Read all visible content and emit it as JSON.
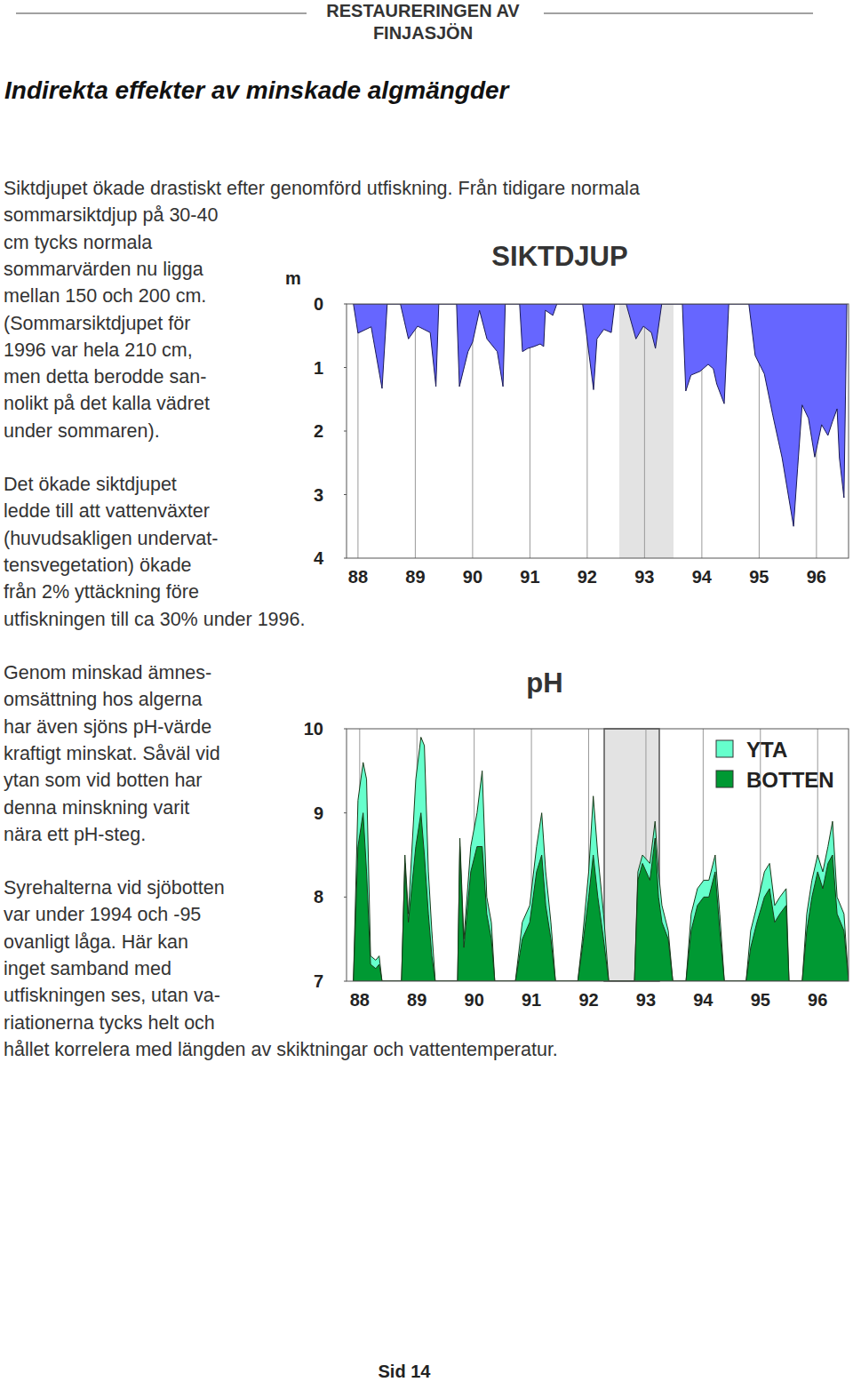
{
  "header": {
    "lines": [
      "RESTAURERINGEN AV",
      "FINJASJÖN"
    ]
  },
  "title": "Indirekta effekter av minskade algmängder",
  "paragraphs": [
    [
      "Siktdjupet ökade drastiskt efter genomförd utfiskning. Från tidigare normala",
      "sommarsiktdjup på 30-40",
      "cm tycks normala",
      "sommarvärden nu ligga",
      "mellan 150 och 200 cm.",
      "(Sommarsiktdjupet för",
      "1996 var hela 210 cm,",
      "men detta berodde san-",
      "nolikt på det kalla vädret",
      "under sommaren)."
    ],
    [
      "Det ökade siktdjupet",
      "ledde till att vattenväxter",
      "(huvudsakligen undervat-",
      "tensvegetation) ökade",
      "från 2% yttäckning före",
      "utfiskningen till ca 30% under 1996."
    ],
    [
      "Genom minskad ämnes-",
      "omsättning hos algerna",
      "har även sjöns pH-värde",
      "kraftigt minskat. Såväl vid",
      "ytan som vid botten har",
      "denna minskning varit",
      "nära ett pH-steg."
    ],
    [
      "Syrehalterna vid sjöbotten",
      "var under 1994 och -95",
      "ovanligt låga. Här kan",
      "inget samband med",
      "utfiskningen ses, utan va-",
      "riationerna tycks helt och",
      "hållet korrelera med längden av skiktningar och vattentemperatur."
    ]
  ],
  "chart_data": [
    {
      "type": "area",
      "title": "SIKTDJUP",
      "y_label": "m",
      "x": [
        87.92,
        88.0,
        88.23,
        88.42,
        88.51,
        88.74,
        88.88,
        89.04,
        89.15,
        89.26,
        89.36,
        89.41,
        89.72,
        89.77,
        89.92,
        90.0,
        90.12,
        90.25,
        90.43,
        90.53,
        90.57,
        90.82,
        90.87,
        90.96,
        91.07,
        91.18,
        91.24,
        91.27,
        91.4,
        91.47,
        91.92,
        92.11,
        92.17,
        92.29,
        92.42,
        92.48,
        92.68,
        92.85,
        92.98,
        93.12,
        93.19,
        93.3,
        93.66,
        93.72,
        93.81,
        93.97,
        94.11,
        94.2,
        94.26,
        94.39,
        94.47,
        94.82,
        94.93,
        95.09,
        95.24,
        95.4,
        95.6,
        95.67,
        95.75,
        95.86,
        95.97,
        96.09,
        96.2,
        96.28,
        96.36,
        96.4,
        96.48,
        96.53
      ],
      "values": [
        0,
        0.46,
        0.36,
        1.33,
        0,
        0,
        0.55,
        0.35,
        0.4,
        0.45,
        1.3,
        0,
        0,
        1.3,
        0.75,
        0.6,
        0.1,
        0.55,
        0.75,
        1.3,
        0,
        0,
        0.75,
        0.7,
        0.67,
        0.63,
        0.67,
        0.1,
        0.18,
        0,
        0,
        1.35,
        0.55,
        0.4,
        0.45,
        0,
        0,
        0.55,
        0.35,
        0.45,
        0.7,
        0,
        0,
        1.37,
        1.12,
        1.06,
        0.95,
        1.02,
        1.26,
        1.57,
        0,
        0,
        0.81,
        1.1,
        1.76,
        2.42,
        3.5,
        2.6,
        1.59,
        1.8,
        2.41,
        1.9,
        2.07,
        1.85,
        1.65,
        2.42,
        3.05,
        0
      ],
      "color": "#6666ff",
      "xlim": [
        87.8,
        96.56
      ],
      "ylim": [
        4,
        0
      ],
      "xticks": [
        88,
        89,
        90,
        91,
        92,
        93,
        94,
        95,
        96
      ],
      "yticks": [
        0,
        1,
        2,
        3,
        4
      ],
      "grid": true
    },
    {
      "type": "area",
      "title": "pH",
      "x": [
        87.89,
        87.97,
        88.06,
        88.12,
        88.19,
        88.28,
        88.34,
        88.39,
        88.73,
        88.79,
        88.85,
        88.98,
        89.07,
        89.13,
        89.2,
        89.26,
        89.32,
        89.71,
        89.75,
        89.82,
        89.94,
        90.05,
        90.14,
        90.22,
        90.3,
        90.36,
        90.72,
        90.84,
        90.97,
        91.09,
        91.18,
        91.25,
        91.34,
        91.42,
        91.81,
        91.89,
        92.0,
        92.08,
        92.16,
        92.26,
        92.35,
        92.8,
        92.86,
        92.94,
        93.07,
        93.16,
        93.22,
        93.28,
        93.39,
        93.47,
        93.7,
        93.79,
        93.9,
        94.01,
        94.1,
        94.21,
        94.29,
        94.37,
        94.75,
        94.83,
        94.94,
        95.07,
        95.16,
        95.25,
        95.34,
        95.45,
        95.5,
        95.73,
        95.81,
        95.9,
        96.0,
        96.09,
        96.18,
        96.26,
        96.34,
        96.46,
        96.54
      ],
      "series": [
        {
          "name": "YTA",
          "color": "#66ffcc",
          "values": [
            7.0,
            9.15,
            9.6,
            9.4,
            7.3,
            7.25,
            7.3,
            7.0,
            7.0,
            8.5,
            7.8,
            9.4,
            9.9,
            9.8,
            8.3,
            7.6,
            7.0,
            7.0,
            8.7,
            7.5,
            8.6,
            9.0,
            9.5,
            8.0,
            7.7,
            7.0,
            7.0,
            7.7,
            7.9,
            8.6,
            9.0,
            8.3,
            7.7,
            7.0,
            7.0,
            7.5,
            8.3,
            9.2,
            8.5,
            7.8,
            7.0,
            7.0,
            8.3,
            8.5,
            8.4,
            8.9,
            8.3,
            7.9,
            7.6,
            7.0,
            7.0,
            7.8,
            8.1,
            8.2,
            8.2,
            8.5,
            7.8,
            7.0,
            7.0,
            7.6,
            7.9,
            8.3,
            8.4,
            7.9,
            8.0,
            8.1,
            7.0,
            7.0,
            7.8,
            8.2,
            8.5,
            8.3,
            8.6,
            8.9,
            8.0,
            7.8,
            7.0
          ]
        },
        {
          "name": "BOTTEN",
          "color": "#009933",
          "values": [
            7.0,
            8.6,
            9.0,
            8.3,
            7.2,
            7.15,
            7.2,
            7.0,
            7.0,
            8.4,
            7.7,
            8.6,
            9.0,
            8.5,
            7.8,
            7.3,
            7.0,
            7.0,
            8.6,
            7.4,
            8.3,
            8.6,
            8.6,
            7.8,
            7.5,
            7.0,
            7.0,
            7.5,
            7.7,
            8.3,
            8.5,
            7.9,
            7.5,
            7.0,
            7.0,
            7.4,
            8.0,
            8.5,
            8.0,
            7.5,
            7.0,
            7.0,
            8.2,
            8.4,
            8.2,
            8.7,
            8.0,
            7.7,
            7.5,
            7.0,
            7.0,
            7.6,
            7.9,
            8.0,
            8.0,
            8.3,
            7.6,
            7.0,
            7.0,
            7.4,
            7.7,
            8.0,
            8.1,
            7.7,
            7.8,
            7.9,
            7.0,
            7.0,
            7.6,
            8.0,
            8.3,
            8.1,
            8.4,
            8.5,
            7.8,
            7.6,
            7.0
          ]
        }
      ],
      "xlim": [
        87.77,
        96.54
      ],
      "ylim": [
        7,
        10
      ],
      "xticks": [
        88,
        89,
        90,
        91,
        92,
        93,
        94,
        95,
        96
      ],
      "yticks": [
        7,
        8,
        9,
        10
      ],
      "grid": true,
      "legend": "top-right"
    }
  ],
  "footer": "Sid 14"
}
